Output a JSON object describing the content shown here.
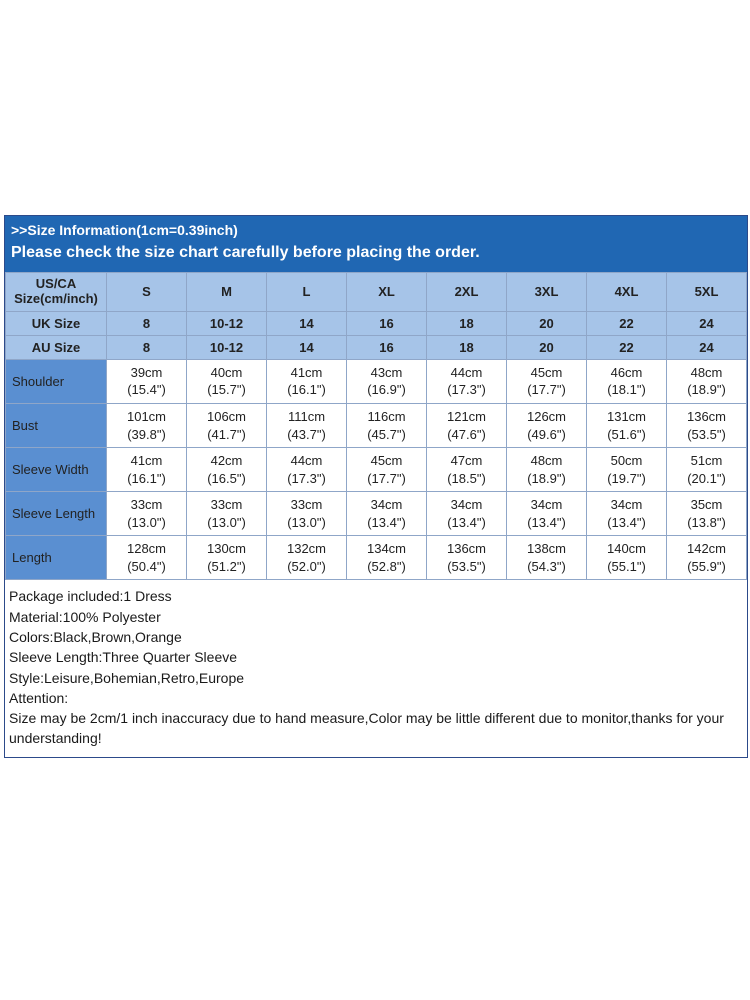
{
  "banner": {
    "title": ">>Size Information(1cm=0.39inch)",
    "note": "Please check the size chart carefully before placing the order."
  },
  "sizes": [
    "S",
    "M",
    "L",
    "XL",
    "2XL",
    "3XL",
    "4XL",
    "5XL"
  ],
  "header_rows": [
    {
      "label": "US/CA Size(cm/inch)",
      "values": [
        "S",
        "M",
        "L",
        "XL",
        "2XL",
        "3XL",
        "4XL",
        "5XL"
      ]
    },
    {
      "label": "UK Size",
      "values": [
        "8",
        "10-12",
        "14",
        "16",
        "18",
        "20",
        "22",
        "24"
      ]
    },
    {
      "label": "AU Size",
      "values": [
        "8",
        "10-12",
        "14",
        "16",
        "18",
        "20",
        "22",
        "24"
      ]
    }
  ],
  "body_rows": [
    {
      "label": "Shoulder",
      "cm": [
        "39cm",
        "40cm",
        "41cm",
        "43cm",
        "44cm",
        "45cm",
        "46cm",
        "48cm"
      ],
      "in": [
        "(15.4\")",
        "(15.7\")",
        "(16.1\")",
        "(16.9\")",
        "(17.3\")",
        "(17.7\")",
        "(18.1\")",
        "(18.9\")"
      ]
    },
    {
      "label": "Bust",
      "cm": [
        "101cm",
        "106cm",
        "111cm",
        "116cm",
        "121cm",
        "126cm",
        "131cm",
        "136cm"
      ],
      "in": [
        "(39.8\")",
        "(41.7\")",
        "(43.7\")",
        "(45.7\")",
        "(47.6\")",
        "(49.6\")",
        "(51.6\")",
        "(53.5\")"
      ]
    },
    {
      "label": "Sleeve Width",
      "cm": [
        "41cm",
        "42cm",
        "44cm",
        "45cm",
        "47cm",
        "48cm",
        "50cm",
        "51cm"
      ],
      "in": [
        "(16.1\")",
        "(16.5\")",
        "(17.3\")",
        "(17.7\")",
        "(18.5\")",
        "(18.9\")",
        "(19.7\")",
        "(20.1\")"
      ]
    },
    {
      "label": "Sleeve Length",
      "cm": [
        "33cm",
        "33cm",
        "33cm",
        "34cm",
        "34cm",
        "34cm",
        "34cm",
        "35cm"
      ],
      "in": [
        "(13.0\")",
        "(13.0\")",
        "(13.0\")",
        "(13.4\")",
        "(13.4\")",
        "(13.4\")",
        "(13.4\")",
        "(13.8\")"
      ]
    },
    {
      "label": "Length",
      "cm": [
        "128cm",
        "130cm",
        "132cm",
        "134cm",
        "136cm",
        "138cm",
        "140cm",
        "142cm"
      ],
      "in": [
        "(50.4\")",
        "(51.2\")",
        "(52.0\")",
        "(52.8\")",
        "(53.5\")",
        "(54.3\")",
        "(55.1\")",
        "(55.9\")"
      ]
    }
  ],
  "footer": {
    "line1": "Package included:1 Dress",
    "line2": "Material:100% Polyester",
    "line3": "Colors:Black,Brown,Orange",
    "line4": "Sleeve Length:Three Quarter Sleeve",
    "line5": "Style:Leisure,Bohemian,Retro,Europe",
    "line6": "Attention:",
    "line7": "Size may be 2cm/1 inch inaccuracy due to hand measure,Color may be little different due to monitor,thanks for your understanding!"
  },
  "style": {
    "banner_bg": "#2067b3",
    "banner_fg": "#ffffff",
    "header_row_bg": "#a6c4e8",
    "first_col_bg": "#5a8fd1",
    "border_color": "#8fa6c8",
    "body_bg": "#ffffff",
    "font_family": "Arial"
  }
}
